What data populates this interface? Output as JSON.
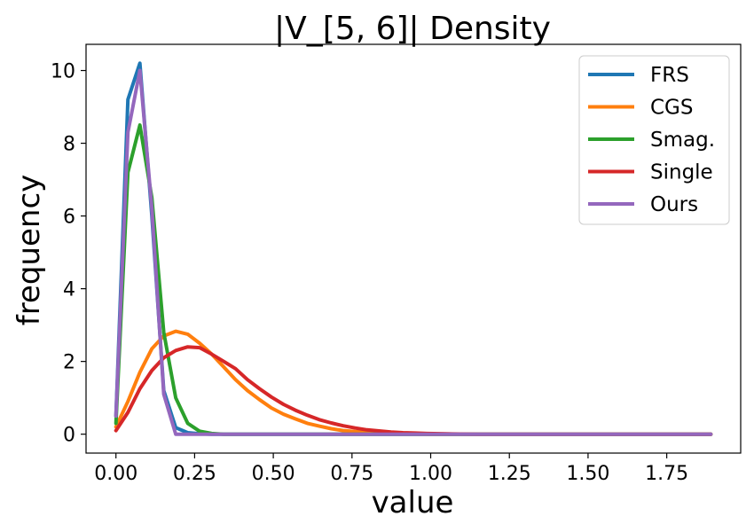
{
  "chart_data": {
    "type": "line",
    "title": "|V_[5, 6]| Density",
    "xlabel": "value",
    "ylabel": "frequency",
    "xlim": [
      -0.095,
      1.985
    ],
    "ylim": [
      -0.52,
      10.72
    ],
    "xticks": [
      0.0,
      0.25,
      0.5,
      0.75,
      1.0,
      1.25,
      1.5,
      1.75
    ],
    "xtick_labels": [
      "0.00",
      "0.25",
      "0.50",
      "0.75",
      "1.00",
      "1.25",
      "1.50",
      "1.75"
    ],
    "yticks": [
      0,
      2,
      4,
      6,
      8,
      10
    ],
    "ytick_labels": [
      "0",
      "2",
      "4",
      "6",
      "8",
      "10"
    ],
    "grid": false,
    "legend_position": "top-right",
    "series": [
      {
        "name": "FRS",
        "color": "#1f77b4",
        "x": [
          0.0,
          0.038,
          0.076,
          0.114,
          0.152,
          0.19,
          0.228,
          0.266,
          0.304,
          1.89
        ],
        "values": [
          0.5,
          9.2,
          10.2,
          6.0,
          1.2,
          0.18,
          0.04,
          0.01,
          0.0,
          0.0
        ]
      },
      {
        "name": "CGS",
        "color": "#ff7f0e",
        "x": [
          0.0,
          0.038,
          0.076,
          0.114,
          0.152,
          0.19,
          0.228,
          0.266,
          0.304,
          0.342,
          0.38,
          0.418,
          0.456,
          0.494,
          0.532,
          0.57,
          0.608,
          0.646,
          0.684,
          0.722,
          0.76,
          0.798,
          0.836,
          0.874,
          0.912,
          0.95,
          1.0,
          1.1,
          1.89
        ],
        "values": [
          0.2,
          0.9,
          1.7,
          2.35,
          2.7,
          2.83,
          2.75,
          2.5,
          2.2,
          1.85,
          1.5,
          1.2,
          0.95,
          0.72,
          0.55,
          0.42,
          0.3,
          0.22,
          0.15,
          0.1,
          0.07,
          0.05,
          0.03,
          0.02,
          0.01,
          0.005,
          0.0,
          0.0,
          0.0
        ]
      },
      {
        "name": "Smag.",
        "color": "#2ca02c",
        "x": [
          0.0,
          0.038,
          0.076,
          0.114,
          0.152,
          0.19,
          0.228,
          0.266,
          0.304,
          0.342,
          1.89
        ],
        "values": [
          0.3,
          7.2,
          8.5,
          6.5,
          2.8,
          1.0,
          0.3,
          0.08,
          0.02,
          0.0,
          0.0
        ]
      },
      {
        "name": "Single",
        "color": "#d62728",
        "x": [
          0.0,
          0.038,
          0.076,
          0.114,
          0.152,
          0.19,
          0.228,
          0.266,
          0.304,
          0.342,
          0.38,
          0.418,
          0.456,
          0.494,
          0.532,
          0.57,
          0.608,
          0.646,
          0.684,
          0.722,
          0.76,
          0.798,
          0.836,
          0.874,
          0.912,
          0.95,
          0.988,
          1.05,
          1.15,
          1.89
        ],
        "values": [
          0.1,
          0.6,
          1.25,
          1.75,
          2.1,
          2.3,
          2.4,
          2.38,
          2.2,
          2.0,
          1.8,
          1.5,
          1.25,
          1.02,
          0.82,
          0.66,
          0.52,
          0.4,
          0.31,
          0.23,
          0.17,
          0.12,
          0.09,
          0.06,
          0.04,
          0.03,
          0.02,
          0.01,
          0.0,
          0.0
        ]
      },
      {
        "name": "Ours",
        "color": "#9467bd",
        "x": [
          0.0,
          0.038,
          0.076,
          0.114,
          0.152,
          0.19,
          0.228,
          1.89
        ],
        "values": [
          0.5,
          8.3,
          10.0,
          6.2,
          1.1,
          0.0,
          0.0,
          0.0
        ]
      }
    ]
  }
}
